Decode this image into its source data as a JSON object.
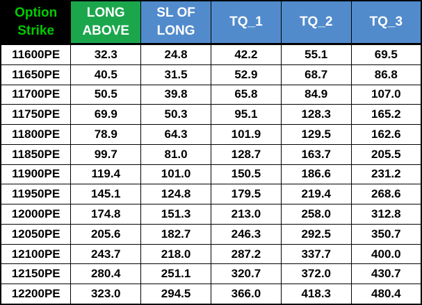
{
  "chart_data": {
    "type": "table",
    "title": "Option strike levels table",
    "columns": [
      "Option Strike",
      "LONG ABOVE",
      "SL OF LONG",
      "TQ_1",
      "TQ_2",
      "TQ_3"
    ],
    "rows": [
      [
        "11600PE",
        "32.3",
        "24.8",
        "42.2",
        "55.1",
        "69.5"
      ],
      [
        "11650PE",
        "40.5",
        "31.5",
        "52.9",
        "68.7",
        "86.8"
      ],
      [
        "11700PE",
        "50.5",
        "39.8",
        "65.8",
        "84.9",
        "107.0"
      ],
      [
        "11750PE",
        "69.9",
        "50.3",
        "95.1",
        "128.3",
        "165.2"
      ],
      [
        "11800PE",
        "78.9",
        "64.3",
        "101.9",
        "129.5",
        "162.6"
      ],
      [
        "11850PE",
        "99.7",
        "81.0",
        "128.7",
        "163.7",
        "205.5"
      ],
      [
        "11900PE",
        "119.4",
        "101.0",
        "150.5",
        "186.6",
        "231.2"
      ],
      [
        "11950PE",
        "145.1",
        "124.8",
        "179.5",
        "219.4",
        "268.6"
      ],
      [
        "12000PE",
        "174.8",
        "151.3",
        "213.0",
        "258.0",
        "312.8"
      ],
      [
        "12050PE",
        "205.6",
        "182.7",
        "246.3",
        "292.5",
        "350.7"
      ],
      [
        "12100PE",
        "243.7",
        "218.0",
        "287.2",
        "337.7",
        "400.0"
      ],
      [
        "12150PE",
        "280.4",
        "251.1",
        "320.7",
        "372.0",
        "430.7"
      ],
      [
        "12200PE",
        "323.0",
        "294.5",
        "366.0",
        "418.3",
        "480.4"
      ]
    ]
  },
  "table": {
    "header": {
      "option_strike": "Option\nStrike",
      "long_above": "LONG\nABOVE",
      "sl_of_long": "SL OF\nLONG",
      "tq_1": "TQ_1",
      "tq_2": "TQ_2",
      "tq_3": "TQ_3"
    }
  },
  "colors": {
    "strike_header_bg": "#000000",
    "strike_header_text": "#00CC00",
    "long_above_header_bg": "#1BA64C",
    "tq_header_bg": "#528BCC",
    "header_text": "#FFFFFF",
    "cell_bg": "#FFFFFF",
    "cell_text": "#000000",
    "grid_border": "#000000"
  }
}
